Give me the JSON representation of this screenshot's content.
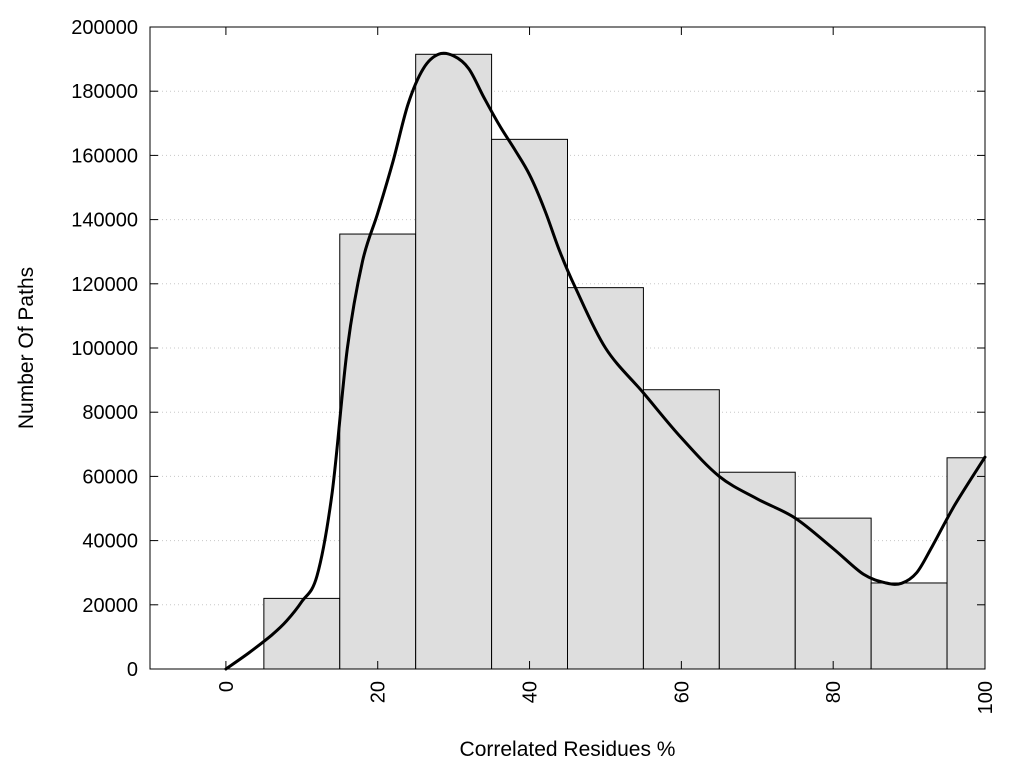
{
  "chart_data": {
    "type": "bar",
    "subtype": "histogram-with-density-curve",
    "title": "",
    "xlabel": "Correlated Residues %",
    "ylabel": "Number Of Paths",
    "xlim": [
      -10,
      100
    ],
    "ylim": [
      0,
      200000
    ],
    "x_ticks": [
      0,
      20,
      40,
      60,
      80,
      100
    ],
    "x_tick_labels": [
      "0",
      "20",
      "40",
      "60",
      "80",
      "100"
    ],
    "y_ticks": [
      0,
      20000,
      40000,
      60000,
      80000,
      100000,
      120000,
      140000,
      160000,
      180000,
      200000
    ],
    "y_tick_labels": [
      "0",
      "20000",
      "40000",
      "60000",
      "80000",
      "100000",
      "120000",
      "140000",
      "160000",
      "180000",
      "200000"
    ],
    "bins": [
      {
        "start": 5,
        "end": 15,
        "value": 22000
      },
      {
        "start": 15,
        "end": 25,
        "value": 135500
      },
      {
        "start": 25,
        "end": 35,
        "value": 191500
      },
      {
        "start": 35,
        "end": 45,
        "value": 165000
      },
      {
        "start": 45,
        "end": 55,
        "value": 118800
      },
      {
        "start": 55,
        "end": 65,
        "value": 87000
      },
      {
        "start": 65,
        "end": 75,
        "value": 61300
      },
      {
        "start": 75,
        "end": 85,
        "value": 47000
      },
      {
        "start": 85,
        "end": 95,
        "value": 26800
      },
      {
        "start": 95,
        "end": 100,
        "value": 65800
      }
    ],
    "curve": {
      "x": [
        0,
        3,
        6,
        8,
        10,
        12,
        14,
        16,
        18,
        20,
        22,
        24,
        26,
        28,
        30,
        32,
        34,
        36,
        38,
        40,
        42,
        44,
        46,
        50,
        55,
        60,
        65,
        70,
        75,
        80,
        84,
        87,
        89,
        91,
        93,
        96,
        100
      ],
      "y": [
        0,
        5000,
        10500,
        15000,
        21000,
        29000,
        55000,
        100000,
        127000,
        142000,
        158000,
        176000,
        187000,
        191500,
        191000,
        187000,
        178000,
        169500,
        162000,
        154000,
        143000,
        130000,
        119000,
        100000,
        86000,
        72000,
        60000,
        53000,
        47000,
        37500,
        29500,
        26800,
        26700,
        30000,
        38000,
        51000,
        66000
      ]
    },
    "bar_fill": "#dedede",
    "bar_stroke": "#000000",
    "curve_color": "#000000",
    "grid": "horizontal-dotted",
    "legend": "none"
  }
}
